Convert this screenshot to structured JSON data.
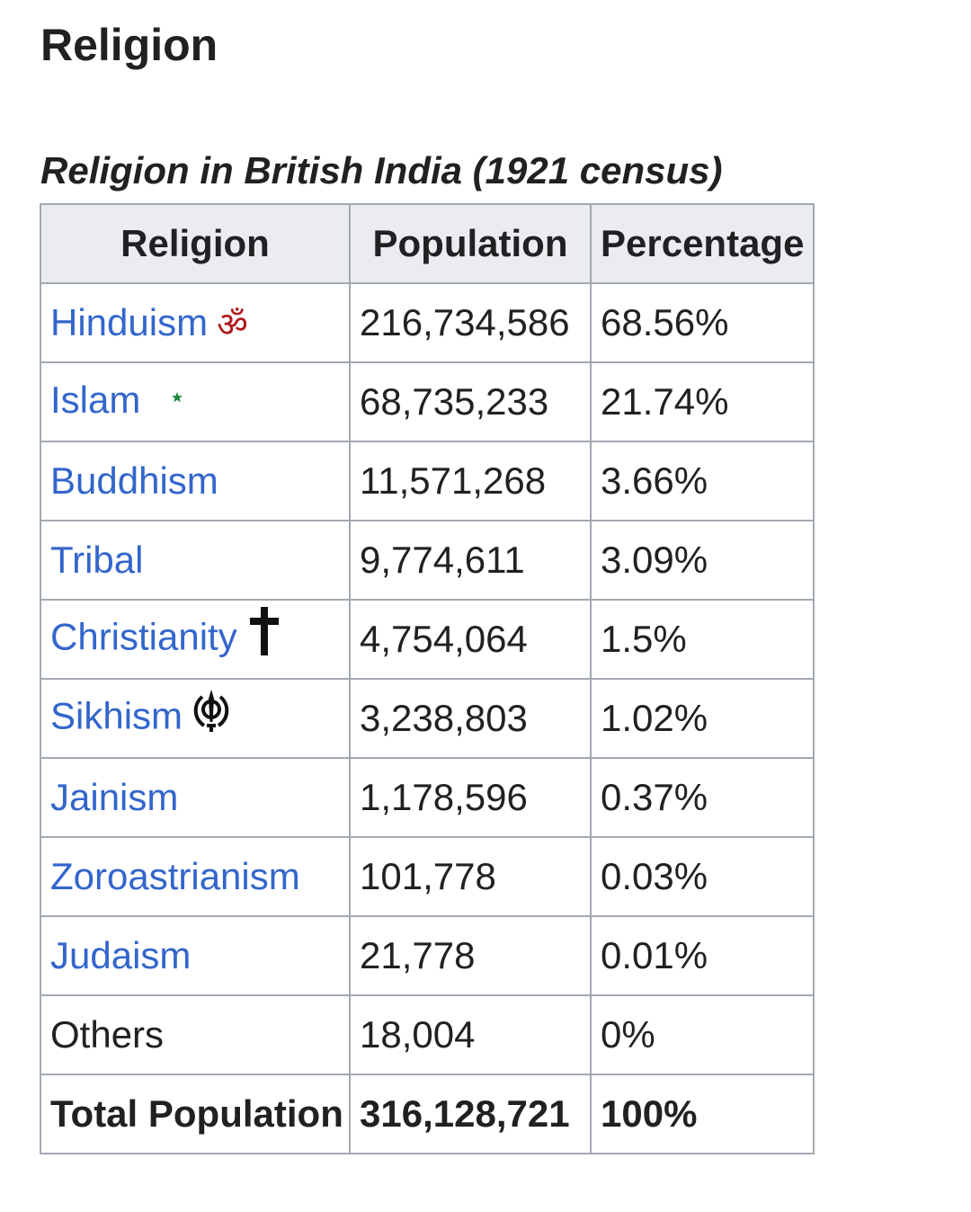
{
  "section_heading": "Religion",
  "table": {
    "caption": "Religion in British India (1921 census)",
    "headers": [
      "Religion",
      "Population",
      "Percentage"
    ],
    "rows": [
      {
        "religion": "Hinduism",
        "population": "216,734,586",
        "percentage": "68.56%",
        "icon": "om-icon"
      },
      {
        "religion": "Islam",
        "population": "68,735,233",
        "percentage": "21.74%",
        "icon": "star-and-crescent-icon"
      },
      {
        "religion": "Buddhism",
        "population": "11,571,268",
        "percentage": "3.66%"
      },
      {
        "religion": "Tribal",
        "population": "9,774,611",
        "percentage": "3.09%"
      },
      {
        "religion": "Christianity",
        "population": "4,754,064",
        "percentage": "1.5%",
        "icon": "cross-icon"
      },
      {
        "religion": "Sikhism",
        "population": "3,238,803",
        "percentage": "1.02%",
        "icon": "khanda-icon"
      },
      {
        "religion": "Jainism",
        "population": "1,178,596",
        "percentage": "0.37%"
      },
      {
        "religion": "Zoroastrianism",
        "population": "101,778",
        "percentage": "0.03%"
      },
      {
        "religion": "Judaism",
        "population": "21,778",
        "percentage": "0.01%"
      },
      {
        "religion": "Others",
        "population": "18,004",
        "percentage": "0%"
      }
    ],
    "total": {
      "label": "Total Population",
      "population": "316,128,721",
      "percentage": "100%"
    }
  },
  "symbols": {
    "om": "ॐ"
  },
  "colors": {
    "link": "#3366cc",
    "header_bg": "#eaecf0",
    "border": "#a2a9b1",
    "om": "#b01b1b",
    "crescent": "#1a8a3a"
  }
}
